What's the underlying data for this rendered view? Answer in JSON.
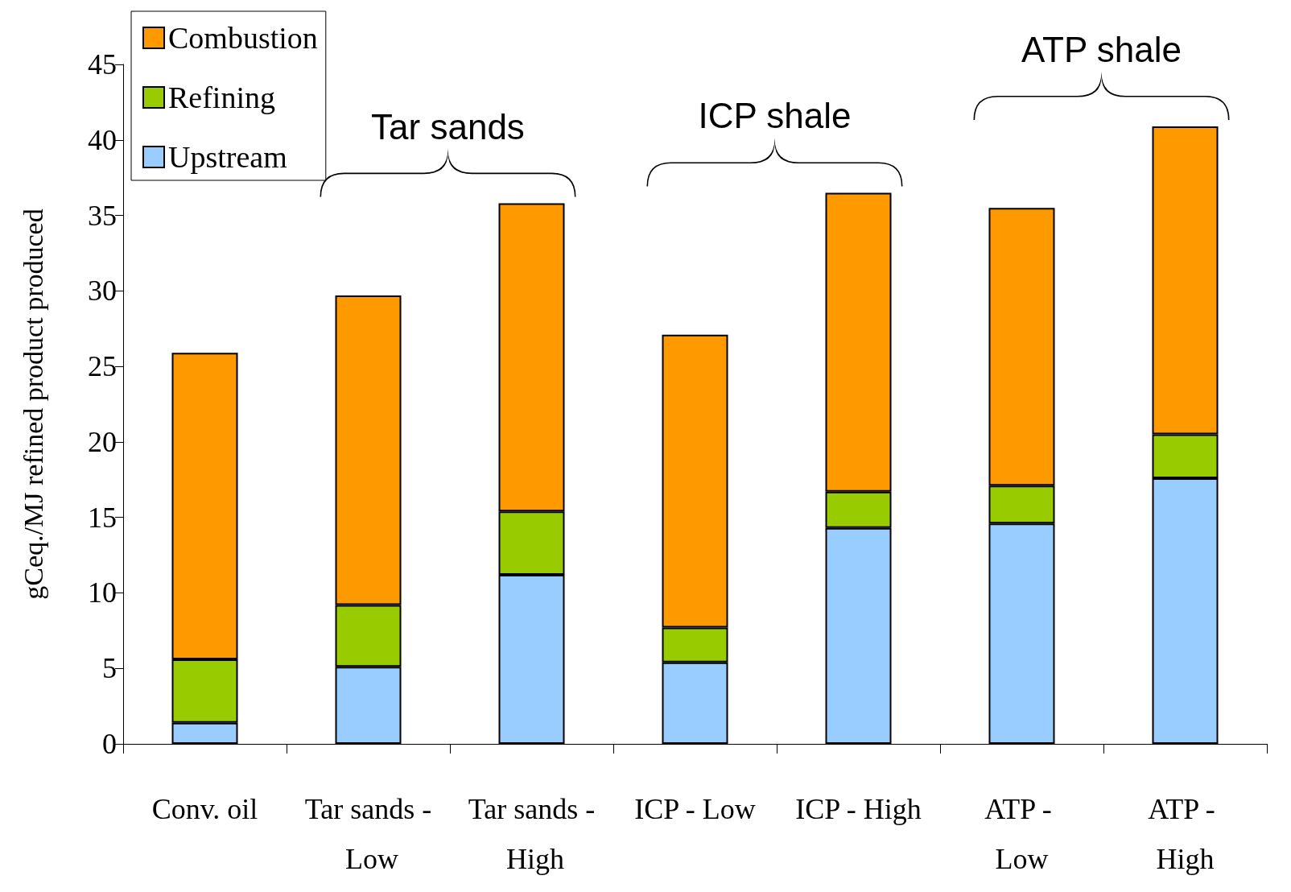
{
  "chart_data": {
    "type": "bar",
    "stacked": true,
    "ylabel": "gCeq./MJ refined product produced",
    "categories": [
      "Conv. oil",
      "Tar sands - Low",
      "Tar sands - High",
      "ICP - Low",
      "ICP - High",
      "ATP - Low",
      "ATP - High"
    ],
    "series": [
      {
        "name": "Upstream",
        "color": "#99ccff",
        "values": [
          1.4,
          5.1,
          11.2,
          5.4,
          14.3,
          14.6,
          17.6
        ]
      },
      {
        "name": "Refining",
        "color": "#99cc00",
        "values": [
          4.2,
          4.1,
          4.2,
          2.3,
          2.4,
          2.5,
          2.9
        ]
      },
      {
        "name": "Combustion",
        "color": "#ff9900",
        "values": [
          20.3,
          20.5,
          20.4,
          19.4,
          19.8,
          18.4,
          20.4
        ]
      }
    ],
    "ylim": [
      0,
      45
    ],
    "yticks": [
      0,
      5,
      10,
      15,
      20,
      25,
      30,
      35,
      40,
      45
    ],
    "grid": false,
    "legend": "top left",
    "annotations": [
      "Tar sands",
      "ICP shale",
      "ATP shale"
    ]
  }
}
